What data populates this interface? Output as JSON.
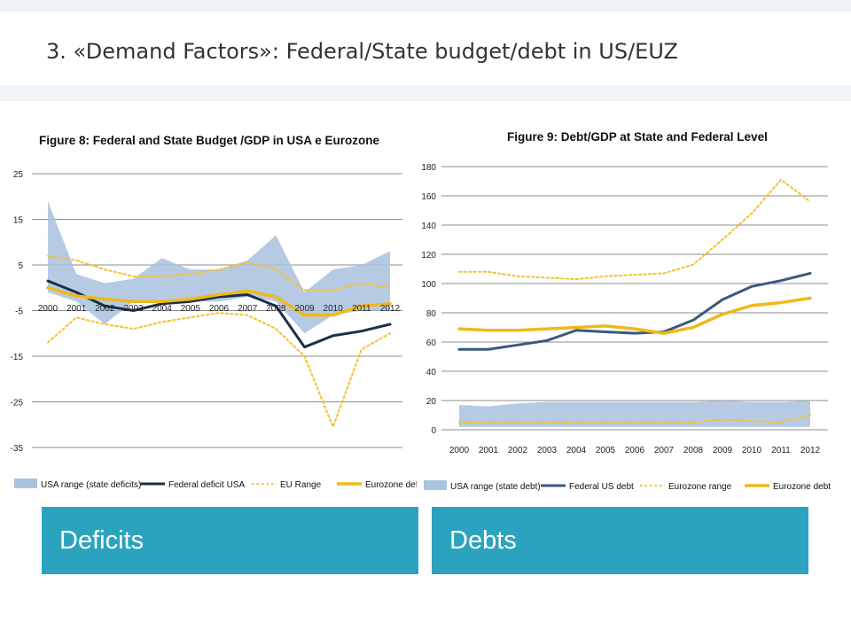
{
  "slide": {
    "title": "3. «Demand Factors»: Federal/State  budget/debt in US/EUZ"
  },
  "captions": {
    "left": "Deficits",
    "right": "Debts"
  },
  "colors": {
    "band": "#a9c2de",
    "federal_usa": "#1c2e4a",
    "federal_us_debt": "#3a5a80",
    "eu_range": "#f2c232",
    "eurozone": "#f0b91a",
    "caption_bg": "#2ba3bf"
  },
  "chart_data": [
    {
      "type": "line",
      "title": "Figure 8:  Federal and State Budget /GDP in USA e Eurozone",
      "x": [
        "2000",
        "2001",
        "2002",
        "2003",
        "2004",
        "2005",
        "2006",
        "2007",
        "2008",
        "2009",
        "2010",
        "2011",
        "2012"
      ],
      "x_tick_labels": [
        "2000",
        "2001",
        "2002",
        "2003",
        "2004",
        "2005",
        "2006",
        "2007",
        "2008",
        "2009",
        "2010",
        "2011",
        "2012"
      ],
      "y_ticks": [
        25,
        15,
        5,
        -5,
        -15,
        -25,
        -35
      ],
      "ylim": [
        -35,
        25
      ],
      "grid": true,
      "legend_position": "bottom",
      "band": {
        "name": "USA range (state deficits)",
        "upper": [
          19,
          3,
          1,
          2,
          6.5,
          4,
          4,
          6,
          11.5,
          -1,
          4,
          5,
          8
        ],
        "lower": [
          -1,
          -3,
          -8,
          -3,
          -3,
          -3,
          -3,
          -2,
          -3,
          -10,
          -6,
          -5,
          -5
        ]
      },
      "series": [
        {
          "name": "Federal deficit USA",
          "style": "solid",
          "values": [
            1.5,
            -1,
            -4,
            -5,
            -3.5,
            -3,
            -2,
            -1.5,
            -4,
            -13,
            -10.5,
            -9.5,
            -8
          ]
        },
        {
          "name": "EU Range",
          "style": "dotted",
          "role": "upper",
          "values": [
            7,
            6,
            4,
            2.5,
            2.5,
            3,
            4,
            5.5,
            4,
            -0.5,
            -0.5,
            1,
            0
          ]
        },
        {
          "name": "EU Range",
          "style": "dotted",
          "role": "lower",
          "values": [
            -12,
            -6.5,
            -8,
            -9,
            -7.5,
            -6.5,
            -5.5,
            -6,
            -9,
            -15,
            -30.5,
            -13.5,
            -10
          ]
        },
        {
          "name": "Eurozone deficit",
          "style": "solid",
          "values": [
            0,
            -1.8,
            -2.5,
            -3,
            -3,
            -2.5,
            -1.5,
            -0.7,
            -2,
            -6,
            -6,
            -4,
            -3.5
          ]
        }
      ]
    },
    {
      "type": "line",
      "title": "Figure 9: Debt/GDP at State and Federal Level",
      "x": [
        "2000",
        "2001",
        "2002",
        "2003",
        "2004",
        "2005",
        "2006",
        "2007",
        "2008",
        "2009",
        "2010",
        "2011",
        "2012"
      ],
      "y_ticks": [
        0,
        20,
        40,
        60,
        80,
        100,
        120,
        140,
        160,
        180
      ],
      "ylim": [
        0,
        180
      ],
      "grid": true,
      "legend_position": "bottom",
      "band": {
        "name": "USA range (state debt)",
        "upper": [
          17,
          16,
          18,
          19,
          19,
          19,
          19,
          19,
          19,
          20,
          19,
          19,
          20
        ],
        "lower": [
          2,
          2,
          2,
          2,
          2,
          2,
          2,
          2,
          2,
          2,
          2,
          2,
          2
        ]
      },
      "series": [
        {
          "name": "Federal US debt",
          "style": "solid",
          "values": [
            55,
            55,
            58,
            61,
            68,
            67,
            66,
            67,
            75,
            89,
            98,
            102,
            107
          ]
        },
        {
          "name": "Eurozone range",
          "style": "dotted",
          "role": "upper",
          "values": [
            108,
            108,
            105,
            104,
            103,
            105,
            106,
            107,
            113,
            130,
            148,
            171,
            156
          ]
        },
        {
          "name": "Eurozone range",
          "style": "dotted",
          "role": "lower",
          "values": [
            5,
            5,
            5,
            5,
            5,
            5,
            5,
            5,
            5,
            7,
            6,
            5,
            10
          ]
        },
        {
          "name": "Eurozone debt",
          "style": "solid",
          "values": [
            69,
            68,
            68,
            69,
            70,
            71,
            69,
            66,
            70,
            79,
            85,
            87,
            90
          ]
        }
      ]
    }
  ]
}
